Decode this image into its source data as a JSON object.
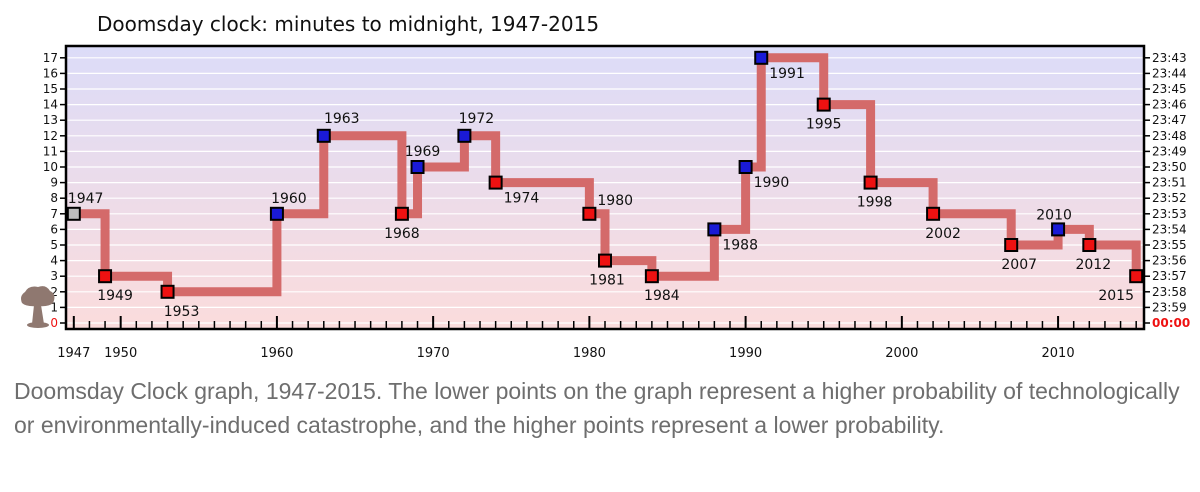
{
  "chart_data": {
    "type": "line",
    "title": "Doomsday clock: minutes to midnight, 1947-2015",
    "xlabel": "",
    "ylabel": "",
    "xlim": [
      1946.5,
      1915.5
    ],
    "xlim_note_removed": true,
    "x_ticks": [
      1947,
      1950,
      1960,
      1970,
      1980,
      1990,
      2000,
      2010
    ],
    "ylim": [
      0,
      17.6
    ],
    "y_ticks": [
      0,
      1,
      2,
      3,
      4,
      5,
      6,
      7,
      8,
      9,
      10,
      11,
      12,
      13,
      14,
      15,
      16,
      17
    ],
    "right_tick_labels": [
      "00:00",
      "23:59",
      "23:58",
      "23:57",
      "23:56",
      "23:55",
      "23:54",
      "23:53",
      "23:52",
      "23:51",
      "23:50",
      "23:49",
      "23:48",
      "23:47",
      "23:46",
      "23:45",
      "23:44",
      "23:43"
    ],
    "points": [
      {
        "year": 1947,
        "minutes": 7,
        "label": "1947",
        "kind": "start"
      },
      {
        "year": 1949,
        "minutes": 3,
        "label": "1949",
        "kind": "worse"
      },
      {
        "year": 1953,
        "minutes": 2,
        "label": "1953",
        "kind": "worse"
      },
      {
        "year": 1960,
        "minutes": 7,
        "label": "1960",
        "kind": "better"
      },
      {
        "year": 1963,
        "minutes": 12,
        "label": "1963",
        "kind": "better"
      },
      {
        "year": 1968,
        "minutes": 7,
        "label": "1968",
        "kind": "worse"
      },
      {
        "year": 1969,
        "minutes": 10,
        "label": "1969",
        "kind": "better"
      },
      {
        "year": 1972,
        "minutes": 12,
        "label": "1972",
        "kind": "better"
      },
      {
        "year": 1974,
        "minutes": 9,
        "label": "1974",
        "kind": "worse"
      },
      {
        "year": 1980,
        "minutes": 7,
        "label": "1980",
        "kind": "worse"
      },
      {
        "year": 1981,
        "minutes": 4,
        "label": "1981",
        "kind": "worse"
      },
      {
        "year": 1984,
        "minutes": 3,
        "label": "1984",
        "kind": "worse"
      },
      {
        "year": 1988,
        "minutes": 6,
        "label": "1988",
        "kind": "better"
      },
      {
        "year": 1990,
        "minutes": 10,
        "label": "1990",
        "kind": "better"
      },
      {
        "year": 1991,
        "minutes": 17,
        "label": "1991",
        "kind": "better"
      },
      {
        "year": 1995,
        "minutes": 14,
        "label": "1995",
        "kind": "worse"
      },
      {
        "year": 1998,
        "minutes": 9,
        "label": "1998",
        "kind": "worse"
      },
      {
        "year": 2002,
        "minutes": 7,
        "label": "2002",
        "kind": "worse"
      },
      {
        "year": 2007,
        "minutes": 5,
        "label": "2007",
        "kind": "worse"
      },
      {
        "year": 2010,
        "minutes": 6,
        "label": "2010",
        "kind": "better"
      },
      {
        "year": 2012,
        "minutes": 5,
        "label": "2012",
        "kind": "worse"
      },
      {
        "year": 2015,
        "minutes": 3,
        "label": "2015",
        "kind": "worse"
      }
    ],
    "colors": {
      "line": "#d46a6a",
      "worse": "#ee1111",
      "better": "#1a1ad6",
      "start": "#bdbdbd",
      "zero_label": "#ee1111",
      "band_top": "#dcdcf8",
      "band_bottom": "#fbdcdc"
    },
    "icon": "mushroom-cloud-icon",
    "grid": true
  },
  "caption": {
    "text": "Doomsday Clock graph, 1947-2015. The lower points on the graph represent a higher probability of technologically or environmentally-induced catastrophe, and the higher points represent a lower probability."
  }
}
